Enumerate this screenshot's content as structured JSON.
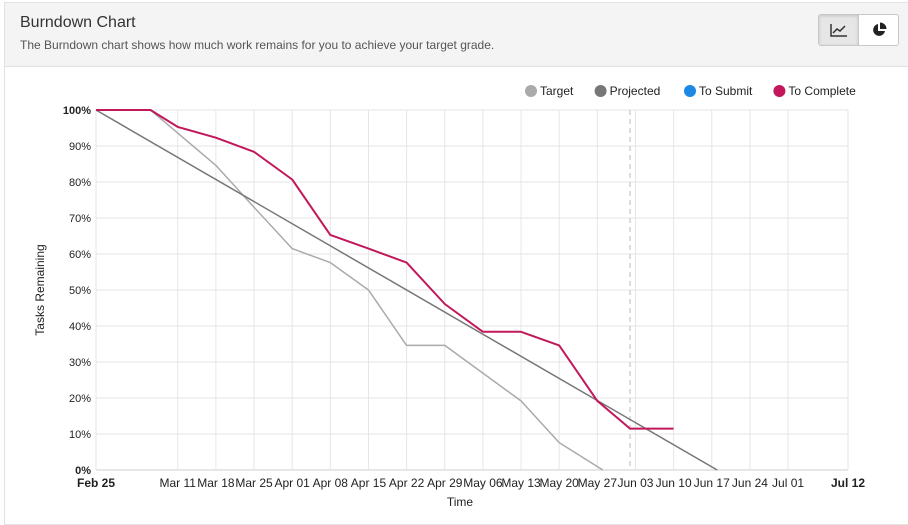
{
  "header": {
    "title": "Burndown Chart",
    "subtitle": "The Burndown chart shows how much work remains for you to achieve your target grade."
  },
  "toolbar": {
    "line_view_icon": "line-chart-icon",
    "pie_view_icon": "pie-chart-icon",
    "active_view": "line"
  },
  "chart_data": {
    "type": "line",
    "xlabel": "Time",
    "ylabel": "Tasks Remaining",
    "ylim": [
      0,
      100
    ],
    "y_ticks": [
      "0%",
      "10%",
      "20%",
      "30%",
      "40%",
      "50%",
      "60%",
      "70%",
      "80%",
      "90%",
      "100%"
    ],
    "xlim": [
      "Feb 25",
      "Jul 12"
    ],
    "x_ticks": [
      "Feb 25",
      "Mar 11",
      "Mar 18",
      "Mar 25",
      "Apr 01",
      "Apr 08",
      "Apr 15",
      "Apr 22",
      "Apr 29",
      "May 06",
      "May 13",
      "May 20",
      "May 27",
      "Jun 03",
      "Jun 10",
      "Jun 17",
      "Jun 24",
      "Jul 01",
      "Jul 12"
    ],
    "bold_ticks": [
      "Feb 25",
      "Jul 12"
    ],
    "today": "Jun 02",
    "grid": true,
    "legend_position": "top-right",
    "series": [
      {
        "name": "Target",
        "color": "#aaaaaa",
        "points": [
          [
            "Feb 25",
            100
          ],
          [
            "Mar 06",
            100
          ],
          [
            "Mar 18",
            84.6
          ],
          [
            "Mar 25",
            73
          ],
          [
            "Apr 01",
            61.5
          ],
          [
            "Apr 08",
            57.6
          ],
          [
            "Apr 15",
            50
          ],
          [
            "Apr 22",
            34.6
          ],
          [
            "Apr 29",
            34.6
          ],
          [
            "May 13",
            19.2
          ],
          [
            "May 20",
            7.6
          ],
          [
            "May 28",
            0
          ]
        ]
      },
      {
        "name": "Projected",
        "color": "#777777",
        "points": [
          [
            "Feb 25",
            100
          ],
          [
            "Jun 18",
            0
          ]
        ]
      },
      {
        "name": "To Submit",
        "color": "#1e88e5",
        "points": []
      },
      {
        "name": "To Complete",
        "color": "#c2185b",
        "points": [
          [
            "Feb 25",
            100
          ],
          [
            "Mar 06",
            100
          ],
          [
            "Mar 11",
            95.3
          ],
          [
            "Mar 18",
            92.3
          ],
          [
            "Mar 25",
            88.4
          ],
          [
            "Apr 01",
            80.7
          ],
          [
            "Apr 08",
            65.3
          ],
          [
            "Apr 15",
            61.5
          ],
          [
            "Apr 22",
            57.6
          ],
          [
            "Apr 29",
            46.1
          ],
          [
            "May 06",
            38.4
          ],
          [
            "May 13",
            38.4
          ],
          [
            "May 20",
            34.6
          ],
          [
            "May 27",
            19.2
          ],
          [
            "Jun 02",
            11.5
          ],
          [
            "Jun 10",
            11.5
          ]
        ]
      }
    ]
  }
}
